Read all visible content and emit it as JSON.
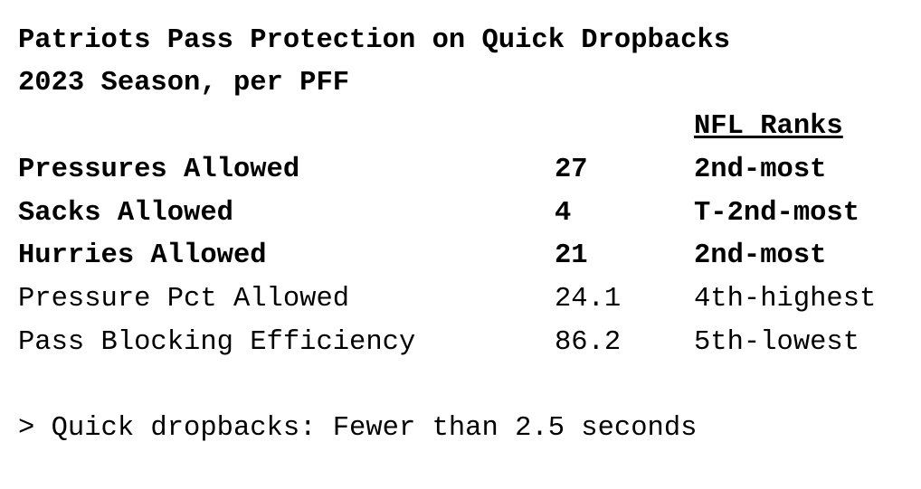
{
  "title": {
    "line1": "Patriots Pass Protection on Quick Dropbacks",
    "line2": "2023 Season, per PFF"
  },
  "table": {
    "ranks_header": "NFL Ranks",
    "rows": [
      {
        "metric": "Pressures Allowed",
        "value": "27",
        "rank": "2nd-most",
        "bold": true
      },
      {
        "metric": "Sacks Allowed",
        "value": "4",
        "rank": "T-2nd-most",
        "bold": true
      },
      {
        "metric": "Hurries Allowed",
        "value": "21",
        "rank": "2nd-most",
        "bold": true
      },
      {
        "metric": "Pressure Pct Allowed",
        "value": "24.1",
        "rank": "4th-highest",
        "bold": false
      },
      {
        "metric": "Pass Blocking Efficiency",
        "value": "86.2",
        "rank": "5th-lowest",
        "bold": false
      }
    ]
  },
  "footnote": "> Quick dropbacks: Fewer than 2.5 seconds"
}
